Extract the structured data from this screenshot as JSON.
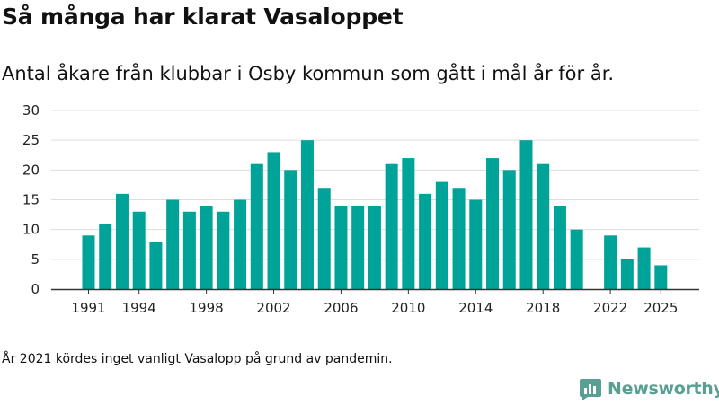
{
  "brand": {
    "name": "Newsworthy",
    "color": "#5a9f94",
    "icon": "bar-chart-logo-icon"
  },
  "footnote": "År 2021 kördes inget vanligt Vasalopp på grund av pandemin.",
  "chart_data": {
    "type": "bar",
    "title": "Så många har klarat Vasaloppet",
    "subtitle": "Antal åkare från klubbar i Osby kommun som gått i mål år för år.",
    "xlabel": "",
    "ylabel": "",
    "bar_color": "#00a398",
    "categories": [
      1991,
      1992,
      1993,
      1994,
      1995,
      1996,
      1997,
      1998,
      1999,
      2000,
      2001,
      2002,
      2003,
      2004,
      2005,
      2006,
      2007,
      2008,
      2009,
      2010,
      2011,
      2012,
      2013,
      2014,
      2015,
      2016,
      2017,
      2018,
      2019,
      2020,
      2021,
      2022,
      2023,
      2024,
      2025
    ],
    "values": [
      9,
      11,
      16,
      13,
      8,
      15,
      13,
      14,
      13,
      15,
      21,
      23,
      20,
      25,
      17,
      14,
      14,
      14,
      21,
      22,
      16,
      18,
      17,
      15,
      22,
      20,
      25,
      21,
      14,
      10,
      null,
      9,
      5,
      7,
      4
    ],
    "ylim": [
      0,
      30
    ],
    "yticks": [
      0,
      5,
      10,
      15,
      20,
      25,
      30
    ],
    "xticks": [
      1991,
      1994,
      1998,
      2002,
      2006,
      2010,
      2014,
      2018,
      2022,
      2025
    ],
    "grid": true
  }
}
